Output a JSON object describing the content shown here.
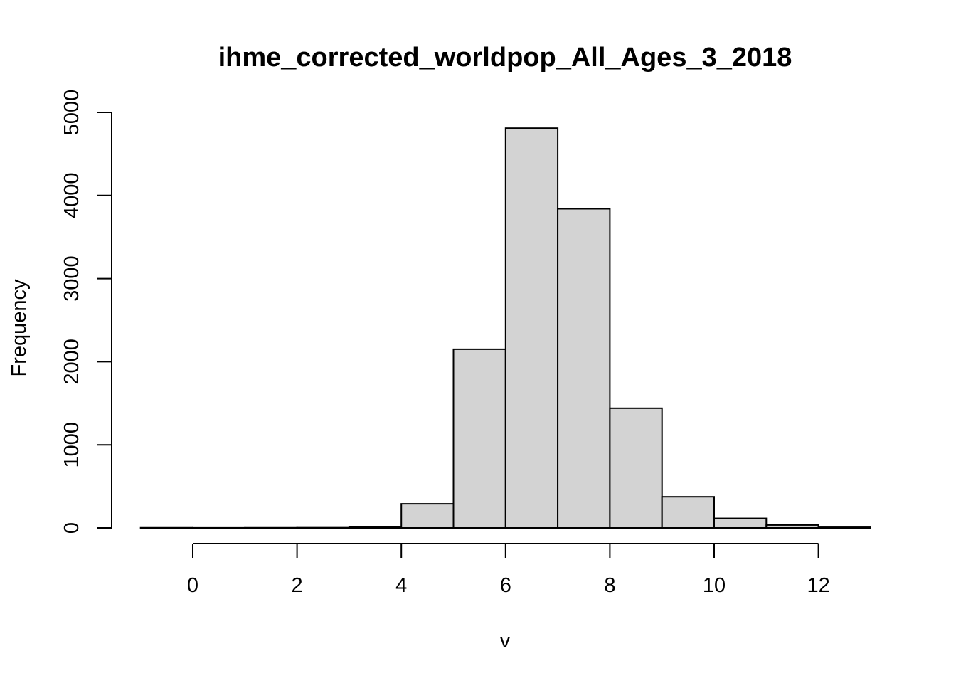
{
  "chart_data": {
    "type": "bar",
    "title": "ihme_corrected_worldpop_All_Ages_3_2018",
    "xlabel": "v",
    "ylabel": "Frequency",
    "xlim": [
      -1,
      13
    ],
    "ylim": [
      0,
      5000
    ],
    "x_ticks": [
      "0",
      "2",
      "4",
      "6",
      "8",
      "10",
      "12"
    ],
    "y_ticks": [
      "0",
      "1000",
      "2000",
      "3000",
      "4000",
      "5000"
    ],
    "bins": [
      {
        "start": -1,
        "end": 0,
        "count": 2
      },
      {
        "start": 0,
        "end": 1,
        "count": 1
      },
      {
        "start": 1,
        "end": 2,
        "count": 2
      },
      {
        "start": 2,
        "end": 3,
        "count": 3
      },
      {
        "start": 3,
        "end": 4,
        "count": 10
      },
      {
        "start": 4,
        "end": 5,
        "count": 290
      },
      {
        "start": 5,
        "end": 6,
        "count": 2150
      },
      {
        "start": 6,
        "end": 7,
        "count": 4810
      },
      {
        "start": 7,
        "end": 8,
        "count": 3840
      },
      {
        "start": 8,
        "end": 9,
        "count": 1440
      },
      {
        "start": 9,
        "end": 10,
        "count": 375
      },
      {
        "start": 10,
        "end": 11,
        "count": 115
      },
      {
        "start": 11,
        "end": 12,
        "count": 35
      },
      {
        "start": 12,
        "end": 13,
        "count": 8
      }
    ],
    "bar_color": "#d3d3d3",
    "grid": false,
    "legend": "none"
  }
}
